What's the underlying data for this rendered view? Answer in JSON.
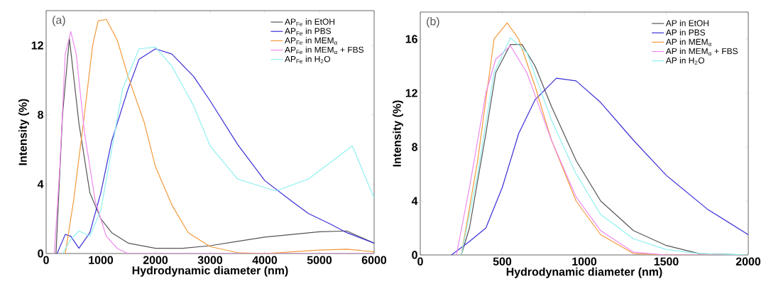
{
  "chart_data": [
    {
      "type": "line",
      "xlabel": "Hydrodynamic diameter (nm)",
      "ylabel": "Intensity (%)",
      "annotations": [
        "(a)"
      ],
      "xlim": [
        0,
        6000
      ],
      "ylim": [
        0,
        14
      ],
      "xticks": [
        0,
        1000,
        2000,
        3000,
        4000,
        5000,
        6000
      ],
      "yticks": [
        0,
        4,
        8,
        12
      ],
      "legend": "top right",
      "series": [
        {
          "name": "AP$_{Fe}$ in EtOH",
          "color": "#555555",
          "x": [
            180,
            300,
            425,
            600,
            800,
            1000,
            1200,
            1500,
            2000,
            2500,
            3000,
            3500,
            4000,
            4500,
            5000,
            5500,
            6000
          ],
          "values": [
            0,
            8,
            12.4,
            7.5,
            3.5,
            2,
            1.2,
            0.6,
            0.3,
            0.3,
            0.45,
            0.7,
            0.95,
            1.1,
            1.25,
            1.3,
            0.6
          ]
        },
        {
          "name": "AP$_{Fe}$ in PBS",
          "color": "#3b2fd6",
          "x": [
            200,
            350,
            450,
            600,
            800,
            1000,
            1200,
            1500,
            1700,
            2000,
            2300,
            2700,
            3000,
            3500,
            4000,
            4500,
            4800,
            5200,
            5500,
            6000
          ],
          "values": [
            0,
            1.1,
            1.0,
            0.3,
            1.2,
            3.5,
            6.5,
            9.5,
            11.2,
            11.8,
            11.5,
            10.2,
            8.8,
            6.3,
            4.2,
            3,
            2.3,
            1.7,
            1.2,
            0.6
          ]
        },
        {
          "name": "AP$_{Fe}$ in MEM$_{α}$",
          "color": "#f39a3a",
          "x": [
            350,
            500,
            700,
            850,
            950,
            1100,
            1300,
            1500,
            1800,
            2000,
            2300,
            2600,
            3000,
            3500,
            4000,
            5000,
            5500,
            6000
          ],
          "values": [
            0,
            3,
            8,
            12,
            13.4,
            13.5,
            12.3,
            10.2,
            7.5,
            5,
            2.8,
            1.2,
            0.4,
            0.05,
            0,
            0.2,
            0.25,
            0.1
          ]
        },
        {
          "name": "AP$_{Fe}$ in MEM$_{α}$ + FBS",
          "color": "#ee88ee",
          "x": [
            150,
            250,
            350,
            450,
            550,
            700,
            900,
            1100,
            1300,
            1500,
            6000
          ],
          "values": [
            0,
            5,
            11.5,
            12.8,
            11.5,
            7,
            3,
            1,
            0.3,
            0,
            0
          ]
        },
        {
          "name": "AP$_{Fe}$ in H$_{2}$O",
          "color": "#8ff0f0",
          "x": [
            300,
            450,
            600,
            800,
            1000,
            1200,
            1400,
            1700,
            2000,
            2300,
            2700,
            3000,
            3500,
            4200,
            4800,
            5600,
            6000
          ],
          "values": [
            0,
            0.8,
            1.3,
            1.0,
            2.5,
            6,
            9.5,
            11.8,
            11.9,
            10.8,
            8.5,
            6.2,
            4.3,
            3.6,
            4.3,
            6.2,
            3.2
          ]
        }
      ]
    },
    {
      "type": "line",
      "xlabel": "Hydrodynamic diameter (nm)",
      "ylabel": "Intensity (%)",
      "annotations": [
        "(b)"
      ],
      "xlim": [
        0,
        2000
      ],
      "ylim": [
        0,
        18
      ],
      "xticks": [
        0,
        500,
        1000,
        1500,
        2000
      ],
      "yticks": [
        0,
        4,
        8,
        12,
        16
      ],
      "legend": "top right",
      "series": [
        {
          "name": "AP in EtOH",
          "color": "#555555",
          "x": [
            250,
            300,
            400,
            460,
            550,
            620,
            700,
            800,
            950,
            1100,
            1300,
            1500,
            1700,
            2000
          ],
          "values": [
            0,
            2,
            9,
            13.5,
            15.6,
            15.6,
            14,
            11,
            7,
            4,
            1.8,
            0.7,
            0.1,
            0
          ]
        },
        {
          "name": "AP in PBS",
          "color": "#3b2fd6",
          "x": [
            190,
            300,
            400,
            500,
            600,
            700,
            830,
            950,
            1100,
            1300,
            1500,
            1750,
            2000
          ],
          "values": [
            0,
            1,
            2,
            5,
            9,
            11.5,
            13.1,
            12.9,
            11.3,
            8.5,
            5.9,
            3.4,
            1.5
          ]
        },
        {
          "name": "AP in MEM$_{α}$",
          "color": "#f39a3a",
          "x": [
            250,
            350,
            450,
            530,
            600,
            700,
            800,
            950,
            1100,
            1300,
            1500,
            2000
          ],
          "values": [
            0,
            7,
            16,
            17.2,
            16,
            12.5,
            8.5,
            4,
            1.5,
            0.1,
            0,
            0
          ]
        },
        {
          "name": "AP in MEM$_{α}$ + FBS",
          "color": "#ee88ee",
          "x": [
            220,
            300,
            400,
            460,
            550,
            650,
            800,
            950,
            1100,
            1300,
            1500,
            2000
          ],
          "values": [
            0,
            5,
            12,
            14.5,
            15.5,
            13.5,
            8.5,
            4.3,
            1.8,
            0.2,
            0,
            0
          ]
        },
        {
          "name": "AP in H$_{2}$O",
          "color": "#8ff0f0",
          "x": [
            250,
            350,
            450,
            550,
            650,
            800,
            950,
            1100,
            1300,
            1500,
            1700,
            2000
          ],
          "values": [
            0,
            6,
            13.5,
            16.1,
            15,
            10,
            6,
            3,
            1.2,
            0.4,
            0.1,
            0
          ]
        }
      ]
    }
  ]
}
